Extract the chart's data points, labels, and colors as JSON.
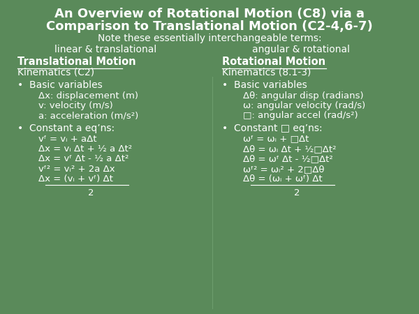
{
  "title_line1": "An Overview of Rotational Motion (C8) via a",
  "title_line2": "Comparison to Translational Motion (C2-4,6-7)",
  "subtitle_line1": "Note these essentially interchangeable terms:",
  "subtitle_line2a": "linear & translational",
  "subtitle_line2b": "angular & rotational",
  "col1_header": "Translational Motion",
  "col2_header": "Rotational Motion",
  "col1_subheader": "Kinematics (C2)",
  "col2_subheader": "Kinematics (8.1-3)",
  "bg_color": "#5a8a5a",
  "text_color_white": "#ffffff",
  "title_fontsize": 13,
  "subtitle_fontsize": 10,
  "header_fontsize": 10.5,
  "subheader_fontsize": 10,
  "body_fontsize": 9.5
}
